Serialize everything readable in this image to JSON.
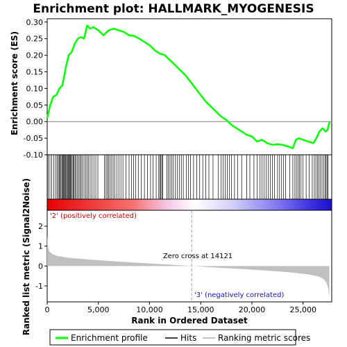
{
  "chart_data": {
    "type": "line",
    "title": "Enrichment plot: HALLMARK_MYOGENESIS",
    "top_panel": {
      "ylabel": "Enrichment score (ES)",
      "ylim": [
        -0.1,
        0.31
      ],
      "yticks": [
        -0.1,
        -0.05,
        0.0,
        0.05,
        0.1,
        0.15,
        0.2,
        0.25,
        0.3
      ],
      "ytick_labels": [
        "-0.10",
        "-0.05",
        "0.00",
        "0.05",
        "0.10",
        "0.15",
        "0.20",
        "0.25",
        "0.30"
      ],
      "series": [
        {
          "name": "Enrichment profile",
          "color": "#00ff00",
          "x": [
            0,
            300,
            600,
            900,
            1200,
            1500,
            1800,
            2100,
            2400,
            2700,
            3000,
            3300,
            3600,
            3900,
            4200,
            4500,
            5000,
            5500,
            6000,
            6500,
            7000,
            7500,
            8000,
            8500,
            9000,
            9500,
            10000,
            10500,
            11000,
            11500,
            12000,
            12500,
            13000,
            13500,
            14000,
            14500,
            15000,
            15500,
            16000,
            16500,
            17000,
            17500,
            18000,
            18500,
            19000,
            19500,
            20000,
            20500,
            21000,
            21500,
            22000,
            22500,
            23000,
            23500,
            24000,
            24300,
            24600,
            25000,
            25500,
            26000,
            26300,
            26600,
            26900,
            27200,
            27400,
            27500,
            27600
          ],
          "values": [
            0.01,
            0.05,
            0.075,
            0.08,
            0.1,
            0.11,
            0.16,
            0.2,
            0.21,
            0.235,
            0.25,
            0.255,
            0.25,
            0.29,
            0.28,
            0.285,
            0.275,
            0.26,
            0.275,
            0.28,
            0.275,
            0.27,
            0.26,
            0.258,
            0.25,
            0.24,
            0.23,
            0.215,
            0.205,
            0.2,
            0.185,
            0.17,
            0.155,
            0.14,
            0.12,
            0.1,
            0.08,
            0.06,
            0.045,
            0.03,
            0.015,
            0.005,
            -0.01,
            -0.02,
            -0.03,
            -0.04,
            -0.045,
            -0.06,
            -0.055,
            -0.065,
            -0.07,
            -0.068,
            -0.07,
            -0.075,
            -0.08,
            -0.055,
            -0.05,
            -0.055,
            -0.06,
            -0.065,
            -0.05,
            -0.03,
            -0.02,
            -0.03,
            -0.025,
            -0.01,
            0.0
          ]
        }
      ]
    },
    "hits": {
      "name": "Hits",
      "ranks": [
        90,
        270,
        450,
        650,
        820,
        960,
        1080,
        1170,
        1260,
        1350,
        1440,
        1520,
        1600,
        1680,
        1750,
        1820,
        1900,
        1980,
        2050,
        2120,
        2190,
        2270,
        2350,
        2440,
        2530,
        2620,
        2720,
        2830,
        2950,
        3080,
        3200,
        3320,
        3450,
        3600,
        3750,
        3900,
        4050,
        4200,
        4380,
        4560,
        4750,
        4950,
        5600,
        5750,
        5880,
        6000,
        6150,
        6300,
        6450,
        6600,
        6800,
        7000,
        7200,
        7400,
        7700,
        8000,
        8250,
        8450,
        8650,
        8900,
        9200,
        9500,
        9800,
        10100,
        10350,
        10650,
        10900,
        11000,
        11100,
        11200,
        11300,
        11700,
        11850,
        12000,
        12150,
        12300,
        12500,
        12700,
        12900,
        13100,
        13300,
        13600,
        13800,
        14000,
        14300,
        14600,
        14900,
        15200,
        15500,
        15800,
        16200,
        16700,
        17000,
        17200,
        17400,
        17600,
        17800,
        18000,
        18300,
        18600,
        19000,
        19500,
        19800,
        20200,
        20500,
        20800,
        21000,
        21200,
        21400,
        21600,
        21800,
        22000,
        22200,
        22500,
        22700,
        22900,
        23100,
        23300,
        23700,
        24000,
        24200,
        24350,
        24500,
        24650,
        24800,
        25000,
        25300,
        25600,
        25900,
        26100,
        26250,
        26400,
        26550,
        26700,
        26850,
        27000,
        27150,
        27250,
        27350,
        27450
      ]
    },
    "bottom_panel": {
      "name": "Ranking metric scores",
      "ylabel": "Ranked list metric (Signal2Noise)",
      "xlabel": "Rank in Ordered Dataset",
      "ylim": [
        -1.8,
        2.8
      ],
      "yticks": [
        -1,
        0,
        1,
        2
      ],
      "ytick_labels": [
        "-1",
        "0",
        "1",
        "2"
      ],
      "metric_x": [
        0,
        80,
        200,
        500,
        1000,
        2000,
        4000,
        7000,
        10000,
        12000,
        14121,
        16000,
        18000,
        20000,
        22000,
        24000,
        25500,
        26500,
        27000,
        27300,
        27450,
        27560
      ],
      "metric_values": [
        1.55,
        0.95,
        0.75,
        0.6,
        0.5,
        0.42,
        0.33,
        0.22,
        0.13,
        0.07,
        0.0,
        -0.06,
        -0.12,
        -0.18,
        -0.25,
        -0.33,
        -0.42,
        -0.52,
        -0.65,
        -0.85,
        -1.1,
        -1.55
      ],
      "zero_cross_label": "Zero cross at 14121",
      "zero_cross": 14121,
      "pos_label": "'2' (positively correlated)",
      "neg_label": "'3' (negatively correlated)",
      "pos_color": "#ee1111",
      "neg_color": "#1111ee"
    },
    "xlim": [
      0,
      27800
    ],
    "xticks": [
      0,
      5000,
      10000,
      15000,
      20000,
      25000
    ],
    "xtick_labels": [
      "0",
      "5,000",
      "10,000",
      "15,000",
      "20,000",
      "25,000"
    ]
  },
  "legend": {
    "items": [
      {
        "label": "Enrichment profile",
        "color": "#00ff00"
      },
      {
        "label": "Hits",
        "color": "#000000"
      },
      {
        "label": "Ranking metric scores",
        "color": "#c0c0c0"
      }
    ]
  }
}
